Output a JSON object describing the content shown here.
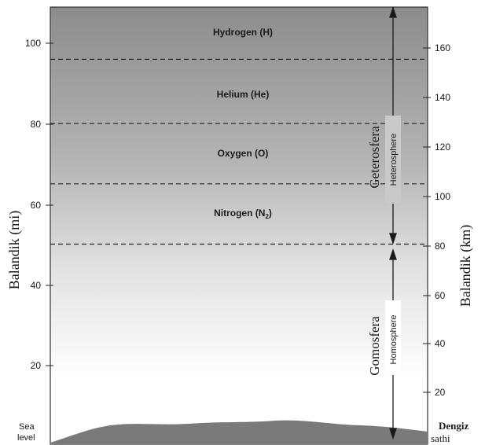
{
  "figure": {
    "left_axis": {
      "label": "Balandik (mi)",
      "ticks": [
        "Sea level",
        "20",
        "40",
        "60",
        "80",
        "100"
      ],
      "range_mi": [
        0,
        108
      ]
    },
    "right_axis": {
      "label": "Balandik (km)",
      "ticks": [
        "Dengiz sathi",
        "20",
        "40",
        "60",
        "80",
        "100",
        "120",
        "140",
        "160"
      ],
      "range_km": [
        0,
        174
      ]
    },
    "layers": [
      {
        "name": "Hydrogen (H)"
      },
      {
        "name": "Helium (He)"
      },
      {
        "name": "Oxygen (O)"
      },
      {
        "name": "Nitrogen (N",
        "subscript": "2",
        "suffix": ")"
      }
    ],
    "boundaries_mi": [
      96,
      80,
      65,
      50
    ],
    "regions": [
      {
        "name": "Geterosfera",
        "english": "Heterosphere",
        "from_km": 80,
        "to_km": 174
      },
      {
        "name": "Gomosfera",
        "english": "Homosphere",
        "from_km": 0,
        "to_km": 80
      }
    ],
    "colors": {
      "top": "#8c8c8c",
      "mid": "#c8c8c8",
      "bottom": "#ffffff",
      "ground": "#7a7a7a",
      "ink": "#1a1a1a"
    }
  }
}
